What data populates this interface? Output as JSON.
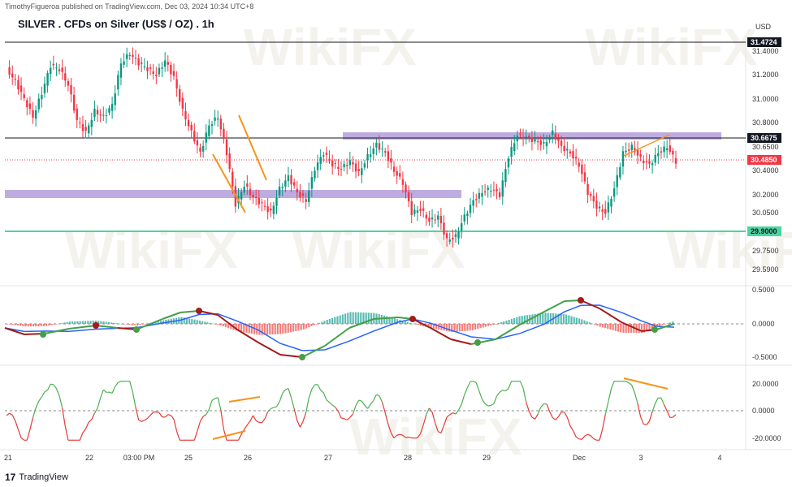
{
  "header": {
    "published_by": "TimothyFigueroa published on TradingView.com, Dec 03, 2024 10:34 UTC+8",
    "title": "SILVER . CFDs on Silver (US$ / OZ) . 1h",
    "currency": "USD"
  },
  "footer": {
    "logo_mark": "17",
    "brand": "TradingView"
  },
  "watermark": "WikiFX",
  "colors": {
    "up": "#089981",
    "down": "#f23645",
    "zone": "#b39ddb",
    "support": "#4cd4a0",
    "trendline": "#f7931a",
    "macd_fast": "#43a047",
    "macd_slow": "#2962ff",
    "macd_fast_down": "#a31b1b",
    "osc_up": "#4caf50",
    "osc_down": "#e53935"
  },
  "chart_data": [
    {
      "type": "line",
      "name": "price",
      "ylim": [
        29.55,
        31.55
      ],
      "y_ticks": [
        "31.4000",
        "31.2000",
        "31.0000",
        "30.8000",
        "30.6500",
        "30.4000",
        "30.2000",
        "30.0500",
        "29.7500",
        "29.5900"
      ],
      "x_ticks": [
        "21",
        "22",
        "03:00 PM",
        "25",
        "26",
        "27",
        "28",
        "29",
        "Dec",
        "3",
        "4"
      ],
      "price_labels": [
        {
          "value": "31.4724",
          "style": "black"
        },
        {
          "value": "30.6675",
          "style": "black"
        },
        {
          "value": "30.4850",
          "style": "red"
        },
        {
          "value": "29.9000",
          "style": "green"
        }
      ],
      "horizontal_lines": [
        31.4724,
        30.6675,
        29.9
      ],
      "zones": [
        {
          "from_x": "27",
          "to_x": "Dec+",
          "value": 30.67
        },
        {
          "from_x": "21",
          "to_x": "28+",
          "value": 30.19
        }
      ],
      "close_path": [
        [
          0,
          31.25
        ],
        [
          3,
          31.15
        ],
        [
          6,
          31.0
        ],
        [
          9,
          30.85
        ],
        [
          12,
          31.05
        ],
        [
          15,
          31.28
        ],
        [
          18,
          31.25
        ],
        [
          21,
          31.12
        ],
        [
          24,
          30.82
        ],
        [
          27,
          30.72
        ],
        [
          30,
          30.9
        ],
        [
          33,
          30.85
        ],
        [
          36,
          30.95
        ],
        [
          39,
          31.3
        ],
        [
          42,
          31.38
        ],
        [
          45,
          31.3
        ],
        [
          48,
          31.25
        ],
        [
          51,
          31.2
        ],
        [
          54,
          31.32
        ],
        [
          57,
          31.18
        ],
        [
          60,
          30.9
        ],
        [
          63,
          30.72
        ],
        [
          66,
          30.55
        ],
        [
          69,
          30.78
        ],
        [
          72,
          30.85
        ],
        [
          75,
          30.55
        ],
        [
          78,
          30.12
        ],
        [
          81,
          30.28
        ],
        [
          84,
          30.18
        ],
        [
          87,
          30.12
        ],
        [
          90,
          30.05
        ],
        [
          93,
          30.25
        ],
        [
          96,
          30.35
        ],
        [
          99,
          30.22
        ],
        [
          102,
          30.15
        ],
        [
          105,
          30.42
        ],
        [
          108,
          30.55
        ],
        [
          111,
          30.45
        ],
        [
          114,
          30.42
        ],
        [
          117,
          30.48
        ],
        [
          120,
          30.38
        ],
        [
          123,
          30.52
        ],
        [
          126,
          30.62
        ],
        [
          129,
          30.55
        ],
        [
          132,
          30.4
        ],
        [
          135,
          30.3
        ],
        [
          138,
          30.05
        ],
        [
          141,
          30.08
        ],
        [
          144,
          29.98
        ],
        [
          147,
          30.02
        ],
        [
          150,
          29.82
        ],
        [
          153,
          29.85
        ],
        [
          156,
          30.02
        ],
        [
          159,
          30.15
        ],
        [
          162,
          30.22
        ],
        [
          165,
          30.25
        ],
        [
          168,
          30.2
        ],
        [
          171,
          30.52
        ],
        [
          174,
          30.7
        ],
        [
          177,
          30.68
        ],
        [
          180,
          30.65
        ],
        [
          183,
          30.62
        ],
        [
          186,
          30.72
        ],
        [
          189,
          30.6
        ],
        [
          192,
          30.55
        ],
        [
          195,
          30.45
        ],
        [
          198,
          30.22
        ],
        [
          201,
          30.1
        ],
        [
          204,
          30.05
        ],
        [
          207,
          30.25
        ],
        [
          210,
          30.55
        ],
        [
          213,
          30.6
        ],
        [
          216,
          30.5
        ],
        [
          219,
          30.45
        ],
        [
          222,
          30.55
        ],
        [
          225,
          30.6
        ],
        [
          228,
          30.48
        ]
      ]
    },
    {
      "type": "line",
      "name": "macd",
      "ylim": [
        -0.6,
        0.6
      ],
      "y_ticks": [
        "0.5000",
        "0.0000",
        "-0.5000"
      ]
    },
    {
      "type": "line",
      "name": "oscillator",
      "ylim": [
        -24,
        24
      ],
      "y_ticks": [
        "20.0000",
        "0.0000",
        "-20.0000"
      ]
    }
  ]
}
